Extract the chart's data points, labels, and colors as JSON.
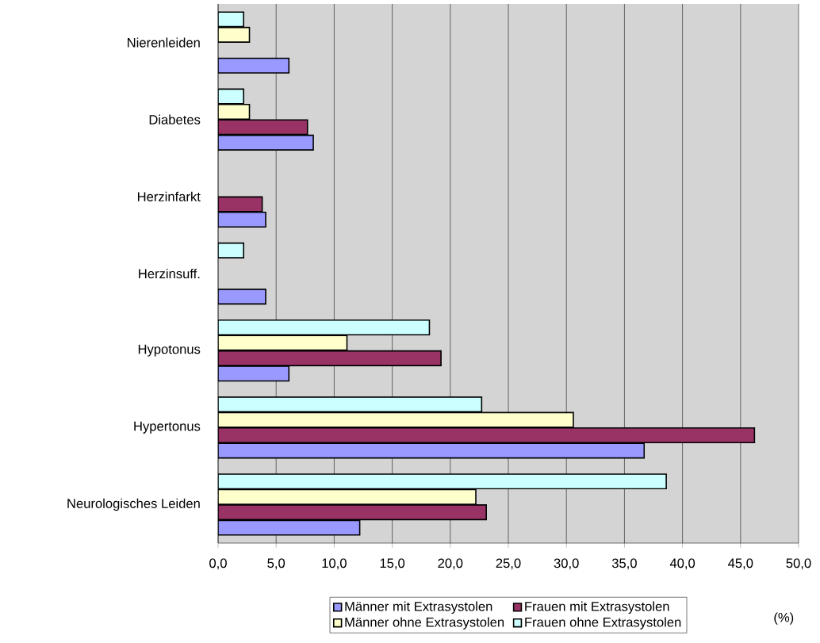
{
  "chart_data": {
    "type": "bar",
    "orientation": "horizontal",
    "xlabel": "(%)",
    "categories": [
      "Nierenleiden",
      "Diabetes",
      "Herzinfarkt",
      "Herzinsuff.",
      "Hypotonus",
      "Hypertonus",
      "Neurologisches Leiden"
    ],
    "series": [
      {
        "name": "Männer mit Extrasystolen",
        "color": "#9999ff",
        "values": [
          6.1,
          8.2,
          4.1,
          4.1,
          6.1,
          36.7,
          12.2
        ]
      },
      {
        "name": "Frauen mit Extrasystolen",
        "color": "#993366",
        "values": [
          null,
          7.7,
          3.8,
          null,
          19.2,
          46.2,
          23.1
        ]
      },
      {
        "name": "Männer ohne Extrasystolen",
        "color": "#ffffcc",
        "values": [
          2.7,
          2.7,
          null,
          null,
          11.1,
          30.6,
          22.2
        ]
      },
      {
        "name": "Frauen ohne Extrasystolen",
        "color": "#ccffff",
        "values": [
          2.2,
          2.2,
          null,
          2.2,
          18.2,
          22.7,
          38.6
        ]
      }
    ],
    "xlim": [
      0,
      50
    ],
    "xticks": [
      {
        "value": 0,
        "label": "0,0"
      },
      {
        "value": 5,
        "label": "5,0"
      },
      {
        "value": 10,
        "label": "10,0"
      },
      {
        "value": 15,
        "label": "15,0"
      },
      {
        "value": 20,
        "label": "20,0"
      },
      {
        "value": 25,
        "label": "25,0"
      },
      {
        "value": 30,
        "label": "30,0"
      },
      {
        "value": 35,
        "label": "35,0"
      },
      {
        "value": 40,
        "label": "40,0"
      },
      {
        "value": 45,
        "label": "45,0"
      },
      {
        "value": 50,
        "label": "50,0"
      }
    ],
    "grid": "x",
    "legend": "bottom"
  }
}
